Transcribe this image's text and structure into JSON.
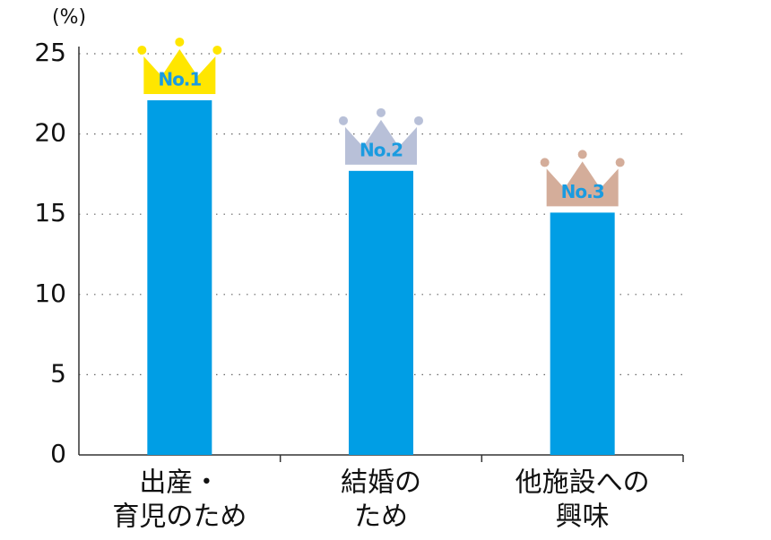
{
  "chart_data": {
    "type": "bar",
    "y_label": "(%)",
    "categories": [
      [
        "出産・",
        "育児のため"
      ],
      [
        "結婚の",
        "ため"
      ],
      [
        "他施設への",
        "興味"
      ]
    ],
    "values": [
      22.1,
      17.7,
      15.1
    ],
    "color": "#009ee5",
    "ylim": [
      0,
      25
    ],
    "yticks": [
      0,
      5,
      10,
      15,
      20,
      25
    ],
    "grid": true,
    "rank_labels": [
      "No.1",
      "No.2",
      "No.3"
    ],
    "crown_colors": [
      "#ffe600",
      "#b8c0d8",
      "#d4ad9a"
    ]
  }
}
